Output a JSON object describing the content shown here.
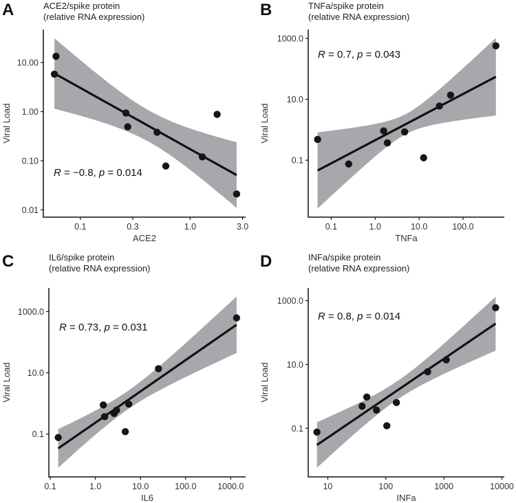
{
  "colors": {
    "band": "#a7a8ab",
    "line": "#111111",
    "point": "#161616",
    "axis": "#111111"
  },
  "chart_data": [
    {
      "type": "scatter",
      "panel": "A",
      "title": [
        "ACE2/spike protein",
        "(relative RNA expression)"
      ],
      "xlabel": "ACE2",
      "ylabel": "Viral Load",
      "x_scale": "log10",
      "y_scale": "log10",
      "xlim": [
        0.046,
        3.2
      ],
      "ylim": [
        0.0071,
        47
      ],
      "x_ticks": [
        {
          "value": 0.1,
          "label": "0.1"
        },
        {
          "value": 0.3,
          "label": "0.3"
        },
        {
          "value": 1.0,
          "label": "1.0"
        },
        {
          "value": 3.0,
          "label": "3.0"
        }
      ],
      "y_ticks": [
        {
          "value": 0.01,
          "label": "0.01"
        },
        {
          "value": 0.1,
          "label": "0.10"
        },
        {
          "value": 1,
          "label": "1.00"
        },
        {
          "value": 10,
          "label": "10.00"
        }
      ],
      "points": [
        [
          0.06,
          13.4
        ],
        [
          0.058,
          5.8
        ],
        [
          0.26,
          0.94
        ],
        [
          0.27,
          0.49
        ],
        [
          0.5,
          0.38
        ],
        [
          0.6,
          0.078
        ],
        [
          1.29,
          0.12
        ],
        [
          1.76,
          0.88
        ],
        [
          2.65,
          0.021
        ]
      ],
      "fit": {
        "from": [
          0.058,
          6.0
        ],
        "to": [
          2.65,
          0.051
        ]
      },
      "ci_band": {
        "center_log10_x": -0.37,
        "min_halfwidth_log10": 0.32,
        "spread": 0.55
      },
      "annotation": {
        "r_label": "R",
        "r_text": " = −0.8, ",
        "p_label": "p",
        "p_text": " = 0.014"
      }
    },
    {
      "type": "scatter",
      "panel": "B",
      "title": [
        "TNFa/spike protein",
        "(relative RNA expression)"
      ],
      "xlabel": "TNFa",
      "ylabel": "Viral Load",
      "x_scale": "log10",
      "y_scale": "log10",
      "xlim": [
        0.03,
        870
      ],
      "ylim": [
        0.00135,
        1950
      ],
      "x_ticks": [
        {
          "value": 0.1,
          "label": "0.1"
        },
        {
          "value": 1,
          "label": "1.0"
        },
        {
          "value": 10,
          "label": "10.0"
        },
        {
          "value": 100,
          "label": "100.0"
        }
      ],
      "y_ticks": [
        {
          "value": 0.1,
          "label": "0.1"
        },
        {
          "value": 10,
          "label": "10.0"
        },
        {
          "value": 1000,
          "label": "1000.0"
        }
      ],
      "points": [
        [
          0.049,
          0.48
        ],
        [
          0.25,
          0.075
        ],
        [
          1.56,
          0.92
        ],
        [
          1.9,
          0.37
        ],
        [
          4.7,
          0.85
        ],
        [
          12.7,
          0.12
        ],
        [
          29,
          6.0
        ],
        [
          52,
          13.7
        ],
        [
          560,
          570
        ]
      ],
      "fit": {
        "from": [
          0.049,
          0.046
        ],
        "to": [
          560,
          55
        ]
      },
      "ci_band": {
        "center_log10_x": 0.7,
        "min_halfwidth_log10": 0.33,
        "spread": 0.36
      },
      "annotation": {
        "r_label": "R",
        "r_text": " = 0.7, ",
        "p_label": "p",
        "p_text": " = 0.043"
      }
    },
    {
      "type": "scatter",
      "panel": "C",
      "title": [
        "IL6/spike protein",
        "(relative RNA expression)"
      ],
      "xlabel": "IL6",
      "ylabel": "Viral Load",
      "x_scale": "log10",
      "y_scale": "log10",
      "xlim": [
        0.093,
        2140
      ],
      "ylim": [
        0.004,
        5900
      ],
      "x_ticks": [
        {
          "value": 0.1,
          "label": "0.1"
        },
        {
          "value": 1,
          "label": "1.0"
        },
        {
          "value": 10,
          "label": "10.0"
        },
        {
          "value": 100,
          "label": "100.0"
        },
        {
          "value": 1000,
          "label": "1000.0"
        }
      ],
      "y_ticks": [
        {
          "value": 0.1,
          "label": "0.1"
        },
        {
          "value": 10,
          "label": "10.0"
        },
        {
          "value": 1000,
          "label": "1000.0"
        }
      ],
      "points": [
        [
          0.15,
          0.077
        ],
        [
          1.5,
          0.89
        ],
        [
          1.6,
          0.37
        ],
        [
          2.6,
          0.47
        ],
        [
          2.95,
          0.6
        ],
        [
          5.5,
          0.95
        ],
        [
          4.6,
          0.12
        ],
        [
          25,
          13.6
        ],
        [
          1350,
          620
        ]
      ],
      "fit": {
        "from": [
          0.15,
          0.034
        ],
        "to": [
          1350,
          370
        ]
      },
      "ci_band": {
        "center_log10_x": 0.71,
        "min_halfwidth_log10": 0.3,
        "spread": 0.13
      },
      "annotation": {
        "r_label": "R",
        "r_text": " = 0.73, ",
        "p_label": "p",
        "p_text": " = 0.031"
      }
    },
    {
      "type": "scatter",
      "panel": "D",
      "title": [
        "INFa/spike protein",
        "(relative RNA expression)"
      ],
      "xlabel": "INFa",
      "ylabel": "Viral Load",
      "x_scale": "log10",
      "y_scale": "log10",
      "xlim": [
        4.6,
        11000
      ],
      "ylim": [
        0.003,
        2500
      ],
      "x_ticks": [
        {
          "value": 10,
          "label": "10"
        },
        {
          "value": 100,
          "label": "100"
        },
        {
          "value": 1000,
          "label": "1000"
        },
        {
          "value": 10000,
          "label": "10000"
        }
      ],
      "y_ticks": [
        {
          "value": 0.1,
          "label": "0.1"
        },
        {
          "value": 10,
          "label": "10.0"
        },
        {
          "value": 1000,
          "label": "1000.0"
        }
      ],
      "points": [
        [
          6.5,
          0.076
        ],
        [
          39,
          0.49
        ],
        [
          47,
          0.95
        ],
        [
          69,
          0.37
        ],
        [
          104,
          0.12
        ],
        [
          152,
          0.64
        ],
        [
          525,
          5.9
        ],
        [
          1100,
          13.9
        ],
        [
          7800,
          600
        ]
      ],
      "fit": {
        "from": [
          6.5,
          0.03
        ],
        "to": [
          7800,
          190
        ]
      },
      "ci_band": {
        "center_log10_x": 2.2,
        "min_halfwidth_log10": 0.29,
        "spread": 0.22
      },
      "annotation": {
        "r_label": "R",
        "r_text": " = 0.8, ",
        "p_label": "p",
        "p_text": " = 0.014"
      }
    }
  ]
}
